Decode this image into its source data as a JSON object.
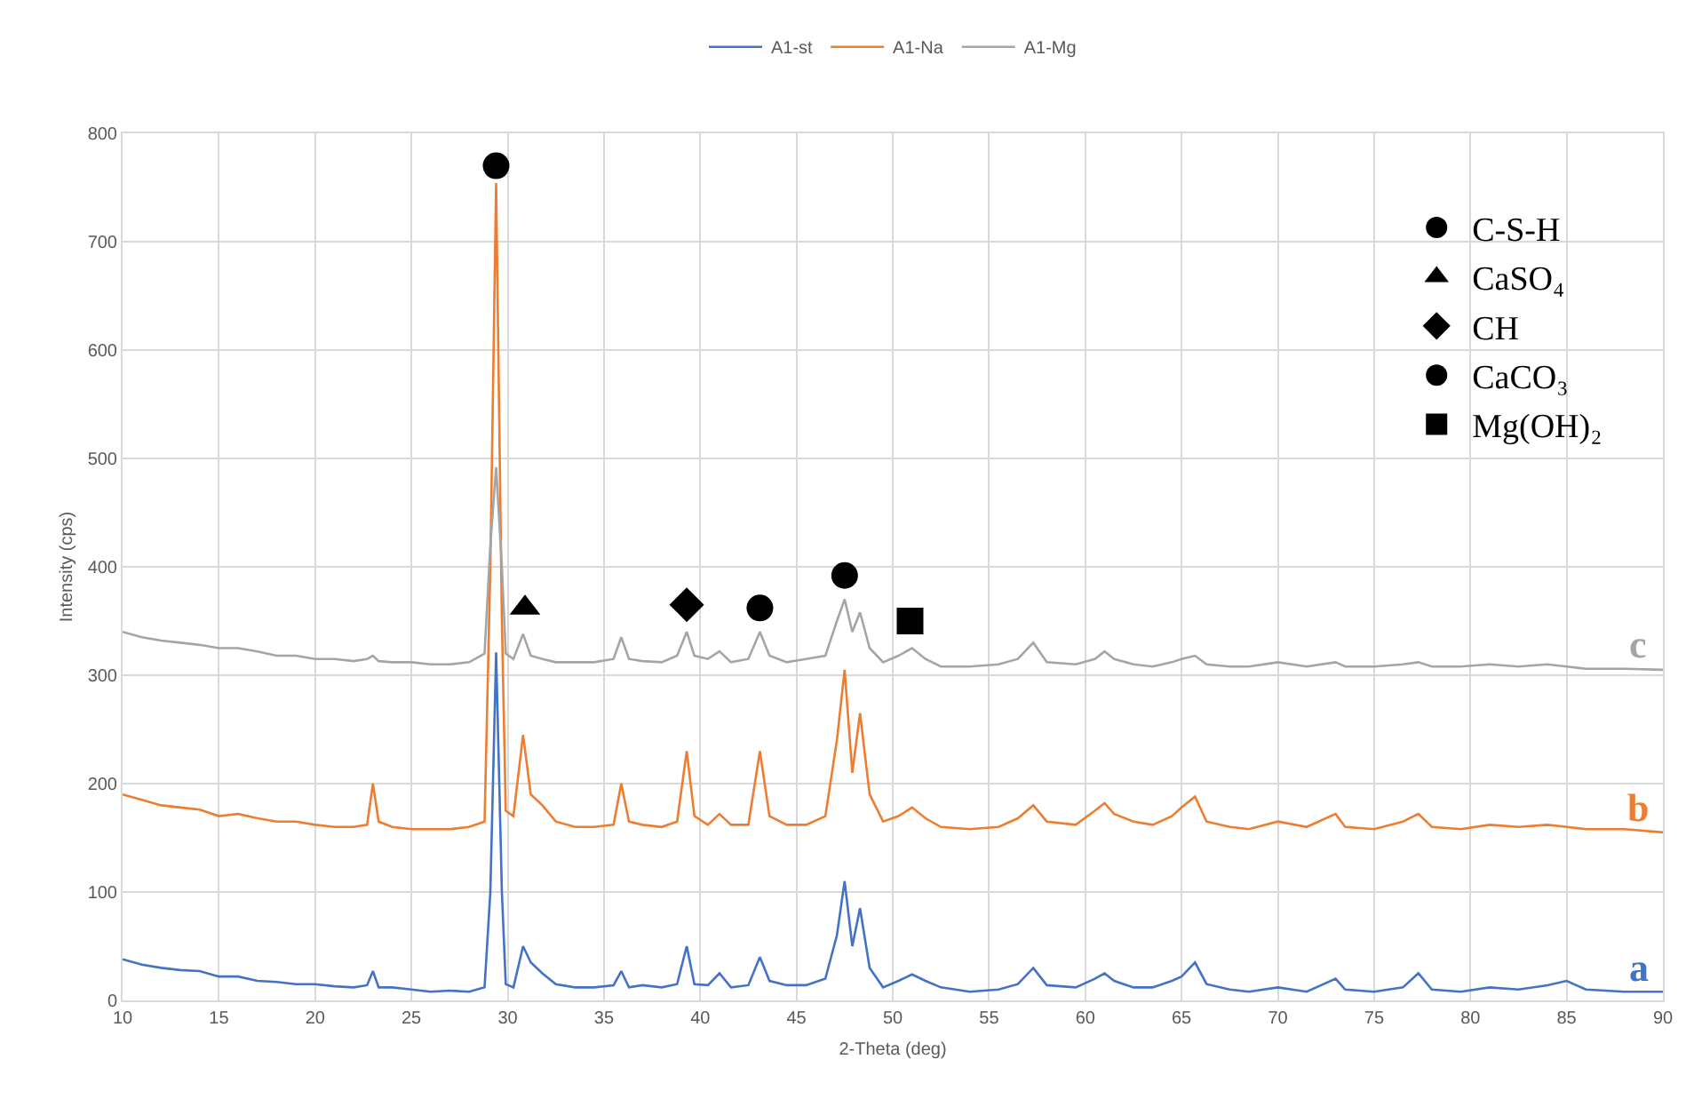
{
  "chart_data": {
    "type": "line",
    "xlabel": "2-Theta (deg)",
    "ylabel": "Intensity (cps)",
    "x": [
      10,
      11,
      12,
      13,
      14,
      15,
      16,
      17,
      18,
      19,
      20,
      21,
      22,
      22.7,
      23,
      23.3,
      24,
      25,
      26,
      27,
      28,
      28.8,
      29.1,
      29.4,
      29.7,
      29.9,
      30.3,
      30.8,
      31.2,
      31.8,
      32.5,
      33.5,
      34.5,
      35.5,
      35.9,
      36.3,
      37,
      38,
      38.8,
      39.3,
      39.7,
      40.4,
      41,
      41.6,
      42.5,
      43.1,
      43.6,
      44.5,
      45.5,
      46.5,
      47.1,
      47.5,
      47.9,
      48.3,
      48.8,
      49.5,
      50.3,
      51,
      51.7,
      52.5,
      54,
      55.5,
      56.5,
      57.3,
      58,
      59.5,
      60.5,
      61,
      61.5,
      62.5,
      63.5,
      64.5,
      65,
      65.7,
      66.3,
      67.5,
      68.5,
      70,
      71.5,
      73,
      73.5,
      75,
      76.5,
      77.3,
      78,
      79.5,
      81,
      82.5,
      84,
      85,
      86,
      88,
      90
    ],
    "series": [
      {
        "name": "A1-st",
        "color": "#4472c4",
        "values": [
          38,
          33,
          30,
          28,
          27,
          22,
          22,
          18,
          17,
          15,
          15,
          13,
          12,
          14,
          27,
          12,
          12,
          10,
          8,
          9,
          8,
          12,
          100,
          321,
          100,
          15,
          12,
          50,
          35,
          25,
          15,
          12,
          12,
          14,
          27,
          12,
          14,
          12,
          15,
          50,
          15,
          14,
          25,
          12,
          14,
          40,
          18,
          14,
          14,
          20,
          60,
          110,
          50,
          85,
          30,
          12,
          18,
          24,
          18,
          12,
          8,
          10,
          15,
          30,
          14,
          12,
          20,
          25,
          18,
          12,
          12,
          18,
          22,
          35,
          15,
          10,
          8,
          12,
          8,
          20,
          10,
          8,
          12,
          25,
          10,
          8,
          12,
          10,
          14,
          18,
          10,
          8,
          8
        ]
      },
      {
        "name": "A1-Na",
        "color": "#ed7d31",
        "values": [
          190,
          185,
          180,
          178,
          176,
          170,
          172,
          168,
          165,
          165,
          162,
          160,
          160,
          162,
          200,
          165,
          160,
          158,
          158,
          158,
          160,
          165,
          400,
          754,
          350,
          175,
          170,
          245,
          190,
          180,
          165,
          160,
          160,
          162,
          200,
          165,
          162,
          160,
          165,
          230,
          170,
          162,
          172,
          162,
          162,
          230,
          170,
          162,
          162,
          170,
          240,
          305,
          210,
          265,
          190,
          165,
          170,
          178,
          168,
          160,
          158,
          160,
          168,
          180,
          165,
          162,
          175,
          182,
          172,
          165,
          162,
          170,
          178,
          188,
          165,
          160,
          158,
          165,
          160,
          172,
          160,
          158,
          165,
          172,
          160,
          158,
          162,
          160,
          162,
          160,
          158,
          158,
          155
        ]
      },
      {
        "name": "A1-Mg",
        "color": "#a5a5a5",
        "values": [
          340,
          335,
          332,
          330,
          328,
          325,
          325,
          322,
          318,
          318,
          315,
          315,
          313,
          315,
          318,
          313,
          312,
          312,
          310,
          310,
          312,
          320,
          420,
          492,
          400,
          320,
          315,
          338,
          318,
          315,
          312,
          312,
          312,
          315,
          335,
          315,
          313,
          312,
          318,
          340,
          318,
          315,
          322,
          312,
          315,
          340,
          318,
          312,
          315,
          318,
          350,
          370,
          340,
          358,
          325,
          312,
          318,
          325,
          315,
          308,
          308,
          310,
          315,
          330,
          312,
          310,
          315,
          322,
          315,
          310,
          308,
          312,
          315,
          318,
          310,
          308,
          308,
          312,
          308,
          312,
          308,
          308,
          310,
          312,
          308,
          308,
          310,
          308,
          310,
          308,
          306,
          306,
          305
        ]
      },
      {
        "type": "scatter",
        "name": "C-S-H",
        "color": "#000000",
        "marker": "circle",
        "x": [
          29.4
        ],
        "values": [
          770
        ]
      },
      {
        "type": "scatter",
        "name": "CaSO₄",
        "color": "#000000",
        "marker": "triangle",
        "x": [
          30.9
        ],
        "values": [
          362
        ]
      },
      {
        "type": "scatter",
        "name": "CH",
        "color": "#000000",
        "marker": "diamond",
        "x": [
          39.3
        ],
        "values": [
          365
        ]
      },
      {
        "type": "scatter",
        "name": "CaCO₃",
        "color": "#000000",
        "marker": "circle",
        "x": [
          43.1,
          47.5
        ],
        "values": [
          362,
          392
        ]
      },
      {
        "type": "scatter",
        "name": "Mg(OH)₂",
        "color": "#000000",
        "marker": "square",
        "x": [
          50.9
        ],
        "values": [
          350
        ]
      }
    ],
    "annotations": [
      "a",
      "b",
      "c"
    ],
    "xlim": [
      10,
      90
    ],
    "xticks": [
      10,
      15,
      20,
      25,
      30,
      35,
      40,
      45,
      50,
      55,
      60,
      65,
      70,
      75,
      80,
      85,
      90
    ],
    "ylim": [
      0,
      800
    ],
    "yticks": [
      0,
      100,
      200,
      300,
      400,
      500,
      600,
      700,
      800
    ],
    "grid": true,
    "legend": "top"
  }
}
